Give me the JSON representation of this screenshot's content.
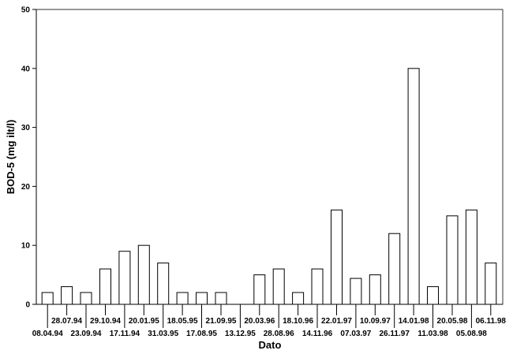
{
  "chart_data": {
    "type": "bar",
    "title": "",
    "xlabel": "Dato",
    "ylabel": "BOD-5 (mg ilt/l)",
    "ylim": [
      0,
      50
    ],
    "yticks": [
      0,
      10,
      20,
      30,
      40,
      50
    ],
    "grid": false,
    "categories": [
      "08.04.94",
      "28.07.94",
      "23.09.94",
      "29.10.94",
      "17.11.94",
      "20.01.95",
      "31.03.95",
      "18.05.95",
      "17.08.95",
      "21.09.95",
      "13.12.95",
      "20.03.96",
      "28.08.96",
      "18.10.96",
      "14.11.96",
      "22.01.97",
      "07.03.97",
      "10.09.97",
      "26.11.97",
      "14.01.98",
      "11.03.98",
      "20.05.98",
      "05.08.98",
      "06.11.98"
    ],
    "values": [
      2,
      3,
      2,
      6,
      9,
      10,
      7,
      2,
      2,
      2,
      0,
      5,
      6,
      2,
      6,
      16,
      4.4,
      5,
      12,
      40,
      3,
      15,
      16,
      7
    ]
  }
}
